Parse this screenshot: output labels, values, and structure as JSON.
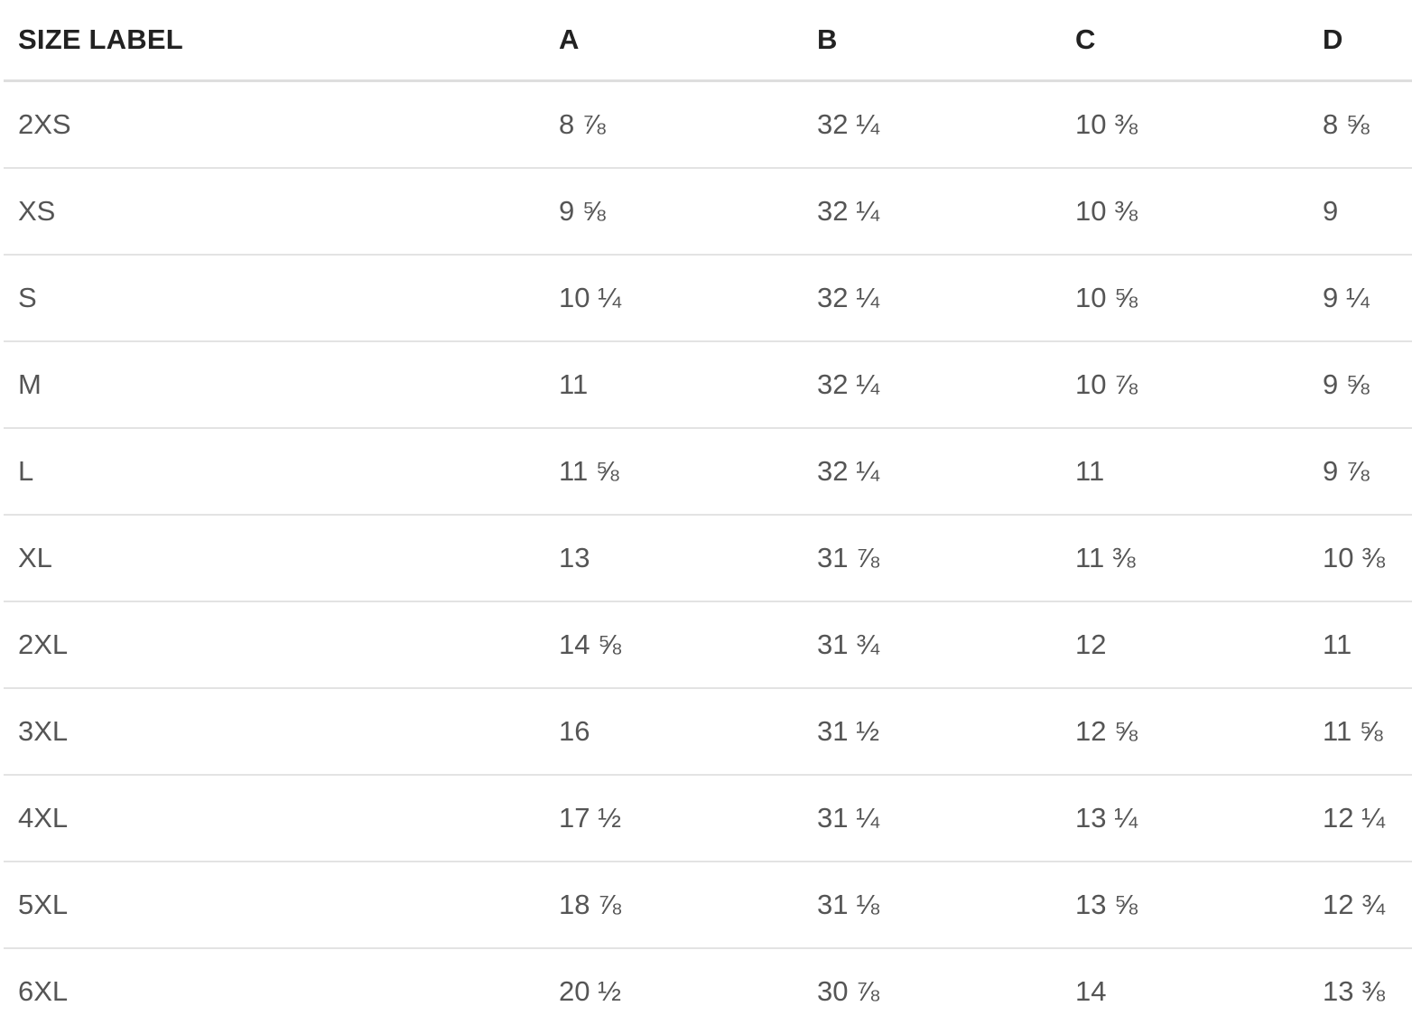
{
  "table": {
    "headers": [
      "SIZE LABEL",
      "A",
      "B",
      "C",
      "D"
    ],
    "rows": [
      [
        "2XS",
        "8 ⅞",
        "32 ¼",
        "10 ⅜",
        "8 ⅝"
      ],
      [
        "XS",
        "9 ⅝",
        "32 ¼",
        "10 ⅜",
        "9"
      ],
      [
        "S",
        "10 ¼",
        "32 ¼",
        "10 ⅝",
        "9 ¼"
      ],
      [
        "M",
        "11",
        "32 ¼",
        "10 ⅞",
        "9 ⅝"
      ],
      [
        "L",
        "11 ⅝",
        "32 ¼",
        "11",
        "9 ⅞"
      ],
      [
        "XL",
        "13",
        "31 ⅞",
        "11 ⅜",
        "10 ⅜"
      ],
      [
        "2XL",
        "14 ⅝",
        "31 ¾",
        "12",
        "11"
      ],
      [
        "3XL",
        "16",
        "31 ½",
        "12 ⅝",
        "11 ⅝"
      ],
      [
        "4XL",
        "17 ½",
        "31 ¼",
        "13 ¼",
        "12 ¼"
      ],
      [
        "5XL",
        "18 ⅞",
        "31 ⅛",
        "13 ⅝",
        "12 ¾"
      ],
      [
        "6XL",
        "20 ½",
        "30 ⅞",
        "14",
        "13 ⅜"
      ]
    ]
  }
}
